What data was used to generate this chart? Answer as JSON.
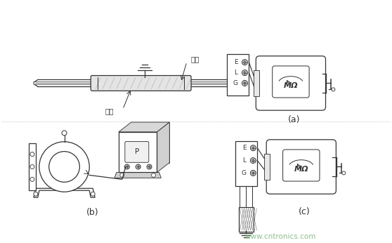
{
  "bg_color": "#f0f0f0",
  "line_color": "#555555",
  "dark_color": "#333333",
  "light_gray": "#cccccc",
  "mid_gray": "#999999",
  "watermark_color": "#88bb88",
  "watermark_text": "www.cntronics.com",
  "label_a": "(a)",
  "label_b": "(b)",
  "label_c": "(c)",
  "label_gang_guan": "鈢管",
  "label_dao_xian": "导线",
  "figsize": [
    5.58,
    3.46
  ],
  "dpi": 100
}
